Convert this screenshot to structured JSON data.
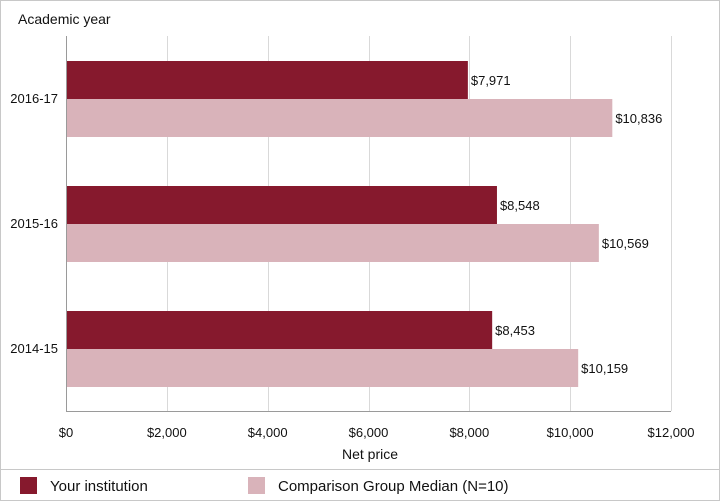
{
  "chart_data": {
    "type": "bar",
    "orientation": "horizontal",
    "y_axis_title": "Academic year",
    "xlabel": "Net price",
    "categories": [
      "2016-17",
      "2015-16",
      "2014-15"
    ],
    "series": [
      {
        "name": "Your institution",
        "color": "#86192d",
        "values": [
          7971,
          8548,
          8453
        ],
        "labels": [
          "$7,971",
          "$8,548",
          "$8,453"
        ]
      },
      {
        "name": "Comparison Group Median (N=10)",
        "color": "#d9b3ba",
        "values": [
          10836,
          10569,
          10159
        ],
        "labels": [
          "$10,836",
          "$10,569",
          "$10,159"
        ]
      }
    ],
    "xlim": [
      0,
      12000
    ],
    "xticks": [
      0,
      2000,
      4000,
      6000,
      8000,
      10000,
      12000
    ],
    "xtick_labels": [
      "$0",
      "$2,000",
      "$4,000",
      "$6,000",
      "$8,000",
      "$10,000",
      "$12,000"
    ],
    "grid": "vertical",
    "legend_position": "bottom"
  }
}
